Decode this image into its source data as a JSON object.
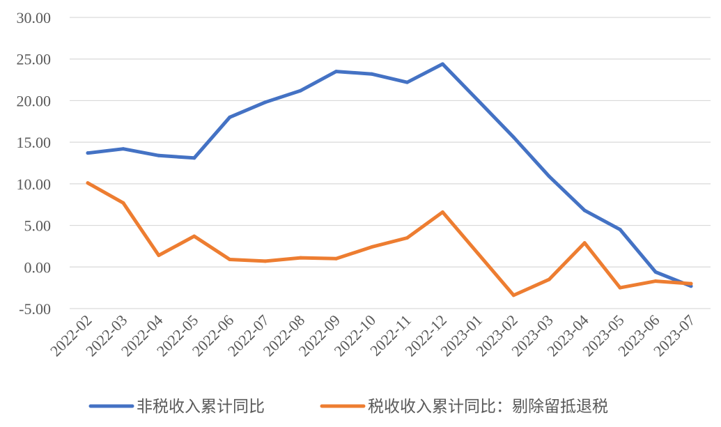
{
  "chart_data": {
    "type": "line",
    "title": "",
    "xlabel": "",
    "ylabel": "",
    "ylim": [
      -5,
      30
    ],
    "yticks": [
      30,
      25,
      20,
      15,
      10,
      5,
      0,
      -5
    ],
    "ytick_labels": [
      "30.00",
      "25.00",
      "20.00",
      "15.00",
      "10.00",
      "5.00",
      "0.00",
      "-5.00"
    ],
    "categories": [
      "2022-02",
      "2022-03",
      "2022-04",
      "2022-05",
      "2022-06",
      "2022-07",
      "2022-08",
      "2022-09",
      "2022-10",
      "2022-11",
      "2022-12",
      "2023-01",
      "2023-02",
      "2023-03",
      "2023-04",
      "2023-05",
      "2023-06",
      "2023-07"
    ],
    "grid": true,
    "legend_position": "bottom",
    "series": [
      {
        "name": "非税收入累计同比",
        "color": "#4472C4",
        "values": [
          13.7,
          14.2,
          13.4,
          13.1,
          18.0,
          19.8,
          21.2,
          23.5,
          23.2,
          22.2,
          24.4,
          20.0,
          15.6,
          10.9,
          6.8,
          4.5,
          -0.6,
          -2.3
        ]
      },
      {
        "name": "税收收入累计同比：剔除留抵退税",
        "color": "#ED7D31",
        "values": [
          10.1,
          7.7,
          1.4,
          3.7,
          0.9,
          0.7,
          1.1,
          1.0,
          2.4,
          3.5,
          6.6,
          1.6,
          -3.4,
          -1.5,
          2.9,
          -2.5,
          -1.7,
          -2.0
        ]
      }
    ]
  }
}
